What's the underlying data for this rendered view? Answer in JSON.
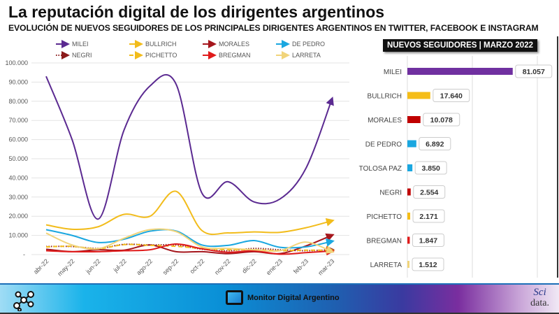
{
  "header": {
    "title": "La reputación digital de los dirigentes argentinos",
    "subtitle": "EVOLUCIÓN DE NUEVOS SEGUIDORES DE LOS PRINCIPALES DIRIGENTES ARGENTINOS EN TWITTER, FACEBOOK E INSTAGRAM"
  },
  "footer": {
    "brand": "Monitor Digital Argentino",
    "logo_sci": "Sci",
    "logo_data": "data."
  },
  "chart_data": [
    {
      "type": "line",
      "legend_position": "top",
      "grid": true,
      "categories": [
        "abr-22",
        "may-22",
        "jun-22",
        "jul-22",
        "ago-22",
        "sep-22",
        "oct-22",
        "nov-22",
        "dic-22",
        "ene-23",
        "feb-23",
        "mar-23"
      ],
      "ylim": [
        0,
        100000
      ],
      "yticks": [
        "-",
        "10.000",
        "20.000",
        "30.000",
        "40.000",
        "50.000",
        "60.000",
        "70.000",
        "80.000",
        "90.000",
        "100.000"
      ],
      "series": [
        {
          "name": "MILEI",
          "color": "#5b2a91",
          "style": "solid",
          "values": [
            93000,
            60000,
            18500,
            65000,
            88000,
            89000,
            32000,
            38000,
            27500,
            29000,
            45000,
            81057
          ]
        },
        {
          "name": "BULLRICH",
          "color": "#f2bc1b",
          "style": "solid",
          "values": [
            15500,
            13200,
            14500,
            21000,
            20000,
            33000,
            12500,
            11300,
            11800,
            11600,
            14000,
            17640
          ]
        },
        {
          "name": "MORALES",
          "color": "#a5161c",
          "style": "solid",
          "values": [
            2800,
            1500,
            2500,
            2300,
            5000,
            1500,
            1500,
            500,
            1500,
            500,
            4500,
            10078
          ]
        },
        {
          "name": "DE PEDRO",
          "color": "#1aa7e0",
          "style": "solid",
          "values": [
            13000,
            10000,
            6300,
            8000,
            12200,
            12300,
            5000,
            4800,
            7300,
            3800,
            4000,
            6892
          ]
        },
        {
          "name": "NEGRI",
          "color": "#8b1a1a",
          "style": "dotted",
          "values": [
            4200,
            4200,
            3200,
            5300,
            5000,
            5000,
            2800,
            2000,
            3200,
            2500,
            2000,
            2554
          ]
        },
        {
          "name": "PICHETTO",
          "color": "#f2bc1b",
          "style": "dashed",
          "values": [
            4000,
            4300,
            3000,
            5200,
            4800,
            4300,
            3200,
            2500,
            2500,
            2000,
            2300,
            2171
          ]
        },
        {
          "name": "BREGMAN",
          "color": "#e01b1b",
          "style": "solid",
          "values": [
            2000,
            1500,
            1500,
            2000,
            2500,
            5500,
            3000,
            1200,
            2000,
            200,
            1000,
            1847
          ]
        },
        {
          "name": "LARRETA",
          "color": "#f1d47a",
          "style": "solid",
          "values": [
            11200,
            5000,
            3000,
            8500,
            13000,
            12000,
            4000,
            3200,
            2500,
            2000,
            6500,
            1512
          ]
        }
      ]
    },
    {
      "type": "bar",
      "title": "NUEVOS SEGUIDORES | MARZO 2022",
      "orientation": "horizontal",
      "xlim": [
        0,
        100000
      ],
      "grid": true,
      "categories": [
        "MILEI",
        "BULLRICH",
        "MORALES",
        "DE PEDRO",
        "TOLOSA PAZ",
        "NEGRI",
        "PICHETTO",
        "BREGMAN",
        "LARRETA"
      ],
      "values": [
        81057,
        17640,
        10078,
        6892,
        3850,
        2554,
        2171,
        1847,
        1512
      ],
      "labels": [
        "81.057",
        "17.640",
        "10.078",
        "6.892",
        "3.850",
        "2.554",
        "2.171",
        "1.847",
        "1.512"
      ],
      "colors": [
        "#7030a0",
        "#f5bd17",
        "#c00000",
        "#1aa7e0",
        "#1aa7e0",
        "#c00000",
        "#f5bd17",
        "#e01b1b",
        "#f1d47a"
      ]
    }
  ]
}
